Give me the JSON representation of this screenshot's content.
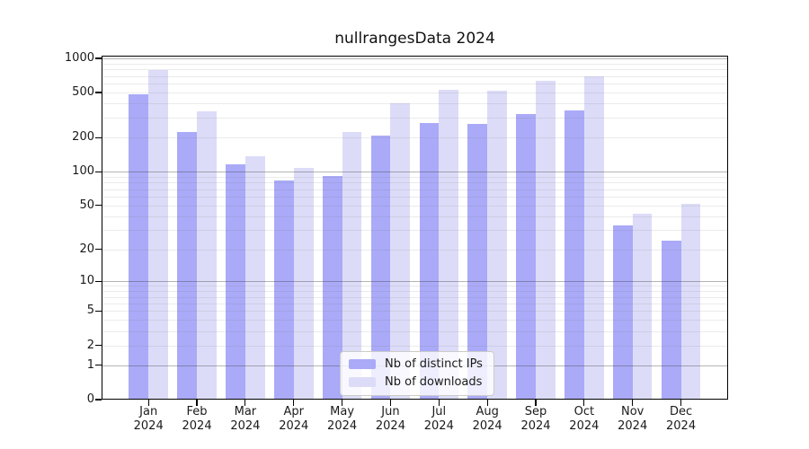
{
  "chart_data": {
    "type": "bar",
    "title": "nullrangesData 2024",
    "categories": [
      "Jan",
      "Feb",
      "Mar",
      "Apr",
      "May",
      "Jun",
      "Jul",
      "Aug",
      "Sep",
      "Oct",
      "Nov",
      "Dec"
    ],
    "x_year": "2024",
    "series": [
      {
        "name": "Nb of distinct IPs",
        "color": "#aaaaf8",
        "values": [
          480,
          225,
          117,
          83,
          92,
          210,
          270,
          265,
          325,
          345,
          33,
          24
        ]
      },
      {
        "name": "Nb of downloads",
        "color": "#dcdcf8",
        "values": [
          790,
          340,
          138,
          107,
          225,
          400,
          530,
          520,
          640,
          690,
          42,
          52
        ]
      }
    ],
    "y_axis": {
      "scale": "log10(1+x)",
      "ticks": [
        0,
        1,
        2,
        5,
        10,
        20,
        50,
        100,
        200,
        500,
        1000
      ],
      "ylim": [
        0,
        1000
      ]
    },
    "grid": {
      "major_values": [
        1,
        10,
        100,
        1000
      ],
      "minor_multiples": [
        2,
        3,
        4,
        5,
        6,
        7,
        8,
        9
      ],
      "minor_decades": [
        1,
        10,
        100
      ]
    },
    "legend": {
      "position": "bottom-center"
    },
    "colors": {
      "frame": "#000000",
      "major_grid": "#b4b4b4",
      "minor_grid": "#ebebeb",
      "text": "#1a1a1a"
    }
  }
}
